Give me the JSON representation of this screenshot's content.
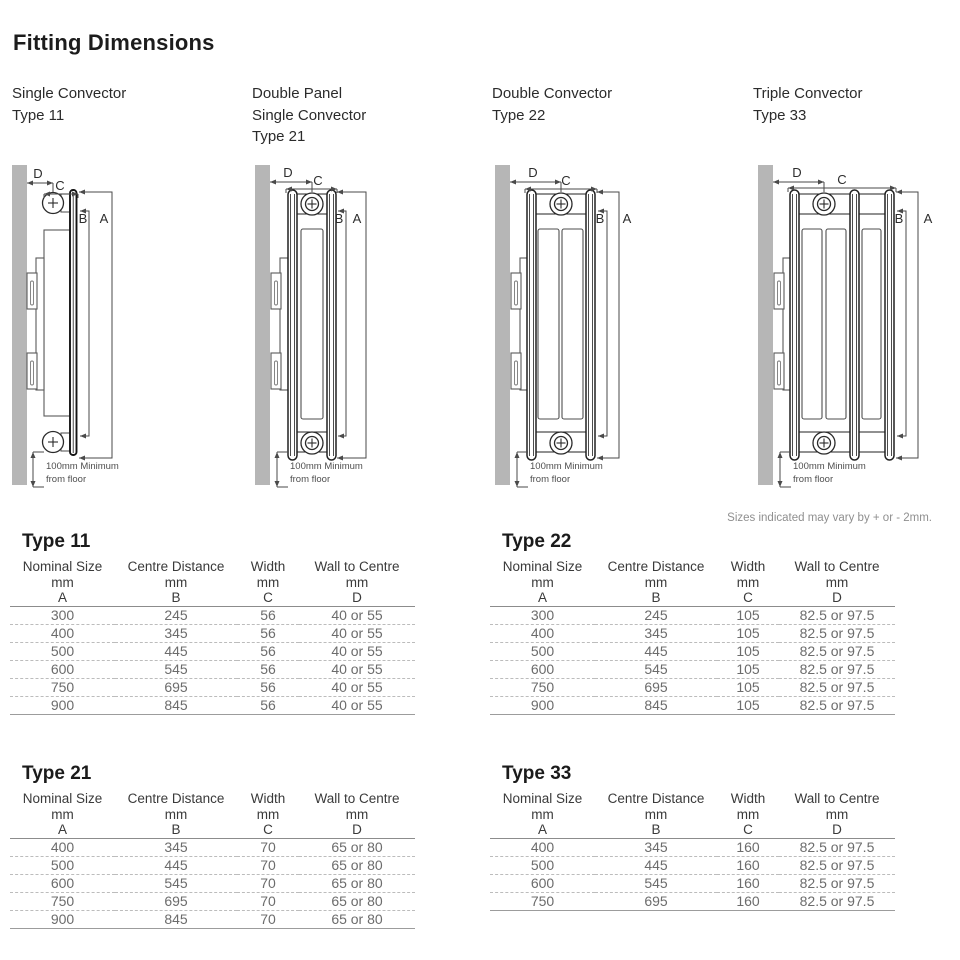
{
  "page": {
    "title": "Fitting Dimensions",
    "tolerance_note": "Sizes indicated may vary by + or - 2mm."
  },
  "diagram_headings": [
    {
      "lines": [
        "Single Convector",
        "Type 11"
      ]
    },
    {
      "lines": [
        "Double Panel",
        "Single Convector",
        "Type 21"
      ]
    },
    {
      "lines": [
        "Double Convector",
        "Type 22"
      ]
    },
    {
      "lines": [
        "Triple Convector",
        "Type 33"
      ]
    }
  ],
  "dim_labels": {
    "a": "A",
    "b": "B",
    "c": "C",
    "d": "D"
  },
  "floor_note": {
    "line1": "100mm Minimum",
    "line2": "from floor"
  },
  "column_headers": {
    "c1": "Nominal Size",
    "c2": "Centre Distance",
    "c3": "Width",
    "c4": "Wall to Centre",
    "unit": "mm",
    "d1": "A",
    "d2": "B",
    "d3": "C",
    "d4": "D"
  },
  "tables": [
    {
      "title": "Type 11",
      "rows": [
        [
          "300",
          "245",
          "56",
          "40 or 55"
        ],
        [
          "400",
          "345",
          "56",
          "40 or 55"
        ],
        [
          "500",
          "445",
          "56",
          "40 or 55"
        ],
        [
          "600",
          "545",
          "56",
          "40 or 55"
        ],
        [
          "750",
          "695",
          "56",
          "40 or 55"
        ],
        [
          "900",
          "845",
          "56",
          "40 or 55"
        ]
      ]
    },
    {
      "title": "Type 22",
      "rows": [
        [
          "300",
          "245",
          "105",
          "82.5 or 97.5"
        ],
        [
          "400",
          "345",
          "105",
          "82.5 or 97.5"
        ],
        [
          "500",
          "445",
          "105",
          "82.5 or 97.5"
        ],
        [
          "600",
          "545",
          "105",
          "82.5 or 97.5"
        ],
        [
          "750",
          "695",
          "105",
          "82.5 or 97.5"
        ],
        [
          "900",
          "845",
          "105",
          "82.5 or 97.5"
        ]
      ]
    },
    {
      "title": "Type 21",
      "rows": [
        [
          "400",
          "345",
          "70",
          "65 or 80"
        ],
        [
          "500",
          "445",
          "70",
          "65 or 80"
        ],
        [
          "600",
          "545",
          "70",
          "65 or 80"
        ],
        [
          "750",
          "695",
          "70",
          "65 or 80"
        ],
        [
          "900",
          "845",
          "70",
          "65 or 80"
        ]
      ]
    },
    {
      "title": "Type 33",
      "rows": [
        [
          "400",
          "345",
          "160",
          "82.5 or 97.5"
        ],
        [
          "500",
          "445",
          "160",
          "82.5 or 97.5"
        ],
        [
          "600",
          "545",
          "160",
          "82.5 or 97.5"
        ],
        [
          "750",
          "695",
          "160",
          "82.5 or 97.5"
        ]
      ]
    }
  ]
}
